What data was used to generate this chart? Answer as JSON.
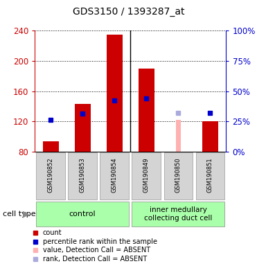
{
  "title": "GDS3150 / 1393287_at",
  "samples": [
    "GSM190852",
    "GSM190853",
    "GSM190854",
    "GSM190849",
    "GSM190850",
    "GSM190851"
  ],
  "ylim_left": [
    80,
    240
  ],
  "ylim_right": [
    0,
    100
  ],
  "yticks_left": [
    80,
    120,
    160,
    200,
    240
  ],
  "yticks_right": [
    0,
    25,
    50,
    75,
    100
  ],
  "ytick_labels_right": [
    "0%",
    "25%",
    "50%",
    "75%",
    "100%"
  ],
  "bar_values": {
    "count": [
      94,
      143,
      235,
      190,
      null,
      120
    ],
    "percentile": [
      122,
      130,
      148,
      150,
      null,
      131
    ],
    "count_absent": [
      null,
      null,
      null,
      null,
      122,
      null
    ],
    "rank_absent": [
      null,
      null,
      null,
      null,
      131,
      null
    ]
  },
  "colors": {
    "count": "#cc0000",
    "percentile": "#0000cc",
    "count_absent": "#ffb0b0",
    "rank_absent": "#aaaadd",
    "tick_left": "#cc0000",
    "tick_right": "#0000cc",
    "grid": "#000000",
    "sample_bg": "#d4d4d4",
    "group_bg": "#aaffaa"
  },
  "group_divider": 2.5,
  "n_control": 3,
  "n_imcd": 3,
  "base_value": 80,
  "legend_items": [
    [
      "#cc0000",
      "count"
    ],
    [
      "#0000cc",
      "percentile rank within the sample"
    ],
    [
      "#ffb0b0",
      "value, Detection Call = ABSENT"
    ],
    [
      "#aaaadd",
      "rank, Detection Call = ABSENT"
    ]
  ]
}
